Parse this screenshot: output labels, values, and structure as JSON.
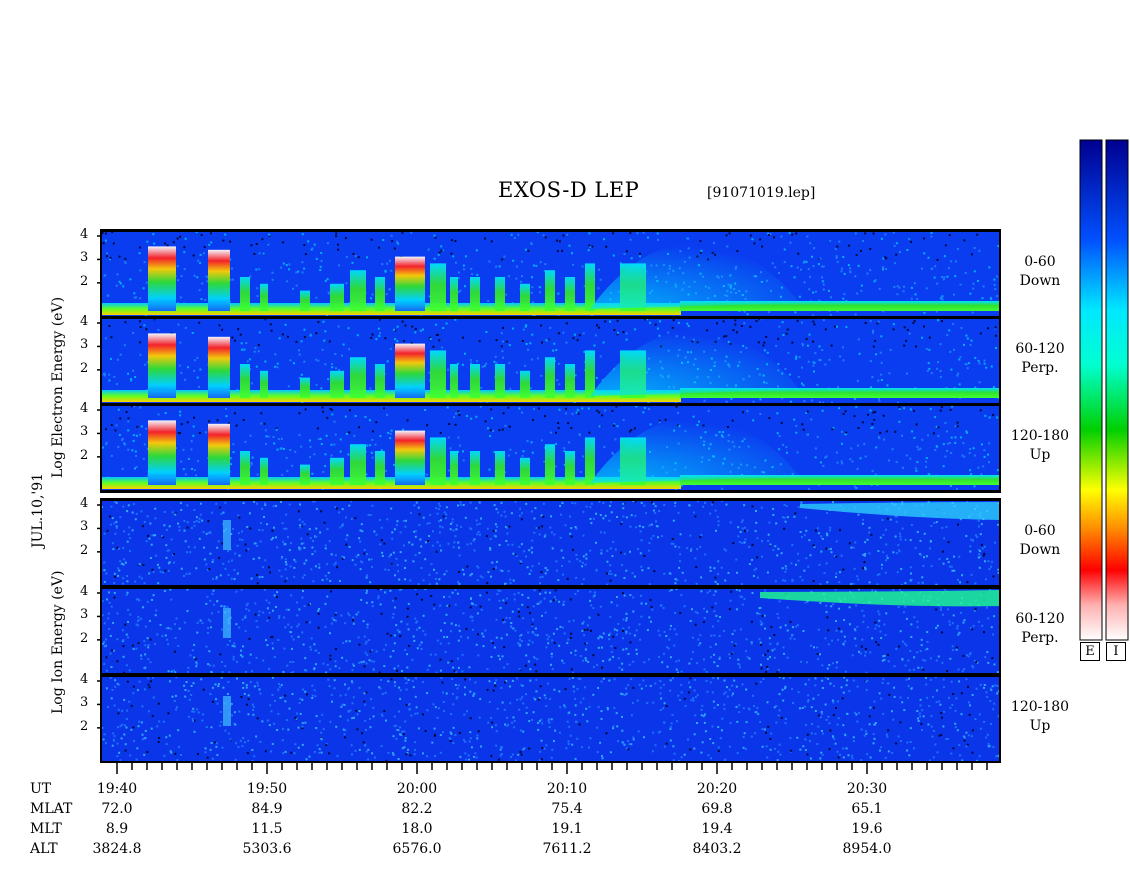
{
  "title": "EXOS-D LEP",
  "subtitle": "[91071019.lep]",
  "date_label": "JUL.10,'91",
  "electron_axis_label": "Log    Electron    Energy  (eV)",
  "ion_axis_label": "Log    Ion    Energy  (eV)",
  "colorbar": {
    "labels": [
      "E",
      "I"
    ]
  },
  "colors": {
    "background": "#0000ff",
    "low": "#0a2fe6",
    "mid": "#00e0ff",
    "green": "#20e020",
    "yellow": "#ffff00",
    "red": "#ff1010",
    "white": "#ffffff"
  },
  "chart_data": {
    "type": "heatmap",
    "panels": [
      {
        "species": "Electron",
        "pitch_angle": "0-60",
        "direction": "Down"
      },
      {
        "species": "Electron",
        "pitch_angle": "60-120",
        "direction": "Perp."
      },
      {
        "species": "Electron",
        "pitch_angle": "120-180",
        "direction": "Up"
      },
      {
        "species": "Ion",
        "pitch_angle": "0-60",
        "direction": "Down"
      },
      {
        "species": "Ion",
        "pitch_angle": "60-120",
        "direction": "Perp."
      },
      {
        "species": "Ion",
        "pitch_angle": "120-180",
        "direction": "Up"
      }
    ],
    "y_ticks": [
      "4",
      "3",
      "2"
    ],
    "ylim": [
      1,
      4
    ],
    "x_ticks": [
      "19:40",
      "19:50",
      "20:00",
      "20:10",
      "20:20",
      "20:30"
    ],
    "orbit_table": {
      "rows": [
        {
          "label": "UT",
          "values": [
            "19:40",
            "19:50",
            "20:00",
            "20:10",
            "20:20",
            "20:30"
          ]
        },
        {
          "label": "MLAT",
          "values": [
            "72.0",
            "84.9",
            "82.2",
            "75.4",
            "69.8",
            "65.1"
          ]
        },
        {
          "label": "MLT",
          "values": [
            "8.9",
            "11.5",
            "18.0",
            "19.1",
            "19.4",
            "19.6"
          ]
        },
        {
          "label": "ALT",
          "values": [
            "3824.8",
            "5303.6",
            "6576.0",
            "7611.2",
            "8403.2",
            "8954.0"
          ]
        }
      ]
    }
  }
}
